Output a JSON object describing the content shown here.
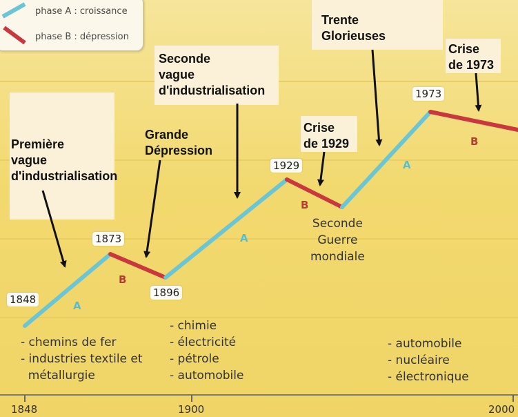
{
  "legend": {
    "phase_a_label": "phase A : croissance",
    "phase_b_label": "phase B : dépression",
    "phase_a_color": "#6ac5d5",
    "phase_b_color": "#c8383e"
  },
  "annotations": {
    "first_wave": "Première\nvague\nd'industrialisation",
    "great_depression": "Grande\nDépression",
    "second_wave": "Seconde\nvague\nd'industrialisation",
    "crisis_1929": "Crise\nde 1929",
    "trente_glorieuses": "Trente\nGlorieuses",
    "crisis_1973": "Crise\nde 1973"
  },
  "year_labels": {
    "y1848": "1848",
    "y1873": "1873",
    "y1896": "1896",
    "y1929": "1929",
    "y1973": "1973"
  },
  "phase_letters": {
    "a": "A",
    "b": "B"
  },
  "ww2_label": "Seconde\nGuerre\nmondiale",
  "industries": {
    "first": "- chemins de fer\n- industries textile et\n  métallurgie",
    "second": "- chimie\n- électricité\n- pétrole\n- automobile",
    "third": "- automobile\n- nucléaire\n- électronique"
  },
  "axis": {
    "ticks": [
      "1848",
      "1900",
      "2000"
    ]
  },
  "segments": [
    {
      "from": "1848",
      "to": "1873",
      "phase": "A"
    },
    {
      "from": "1873",
      "to": "1896",
      "phase": "B"
    },
    {
      "from": "1896",
      "to": "1929",
      "phase": "A"
    },
    {
      "from": "1929",
      "to": "1945",
      "phase": "B"
    },
    {
      "from": "1945",
      "to": "1973",
      "phase": "A"
    },
    {
      "from": "1973",
      "to": "2000",
      "phase": "B"
    }
  ]
}
